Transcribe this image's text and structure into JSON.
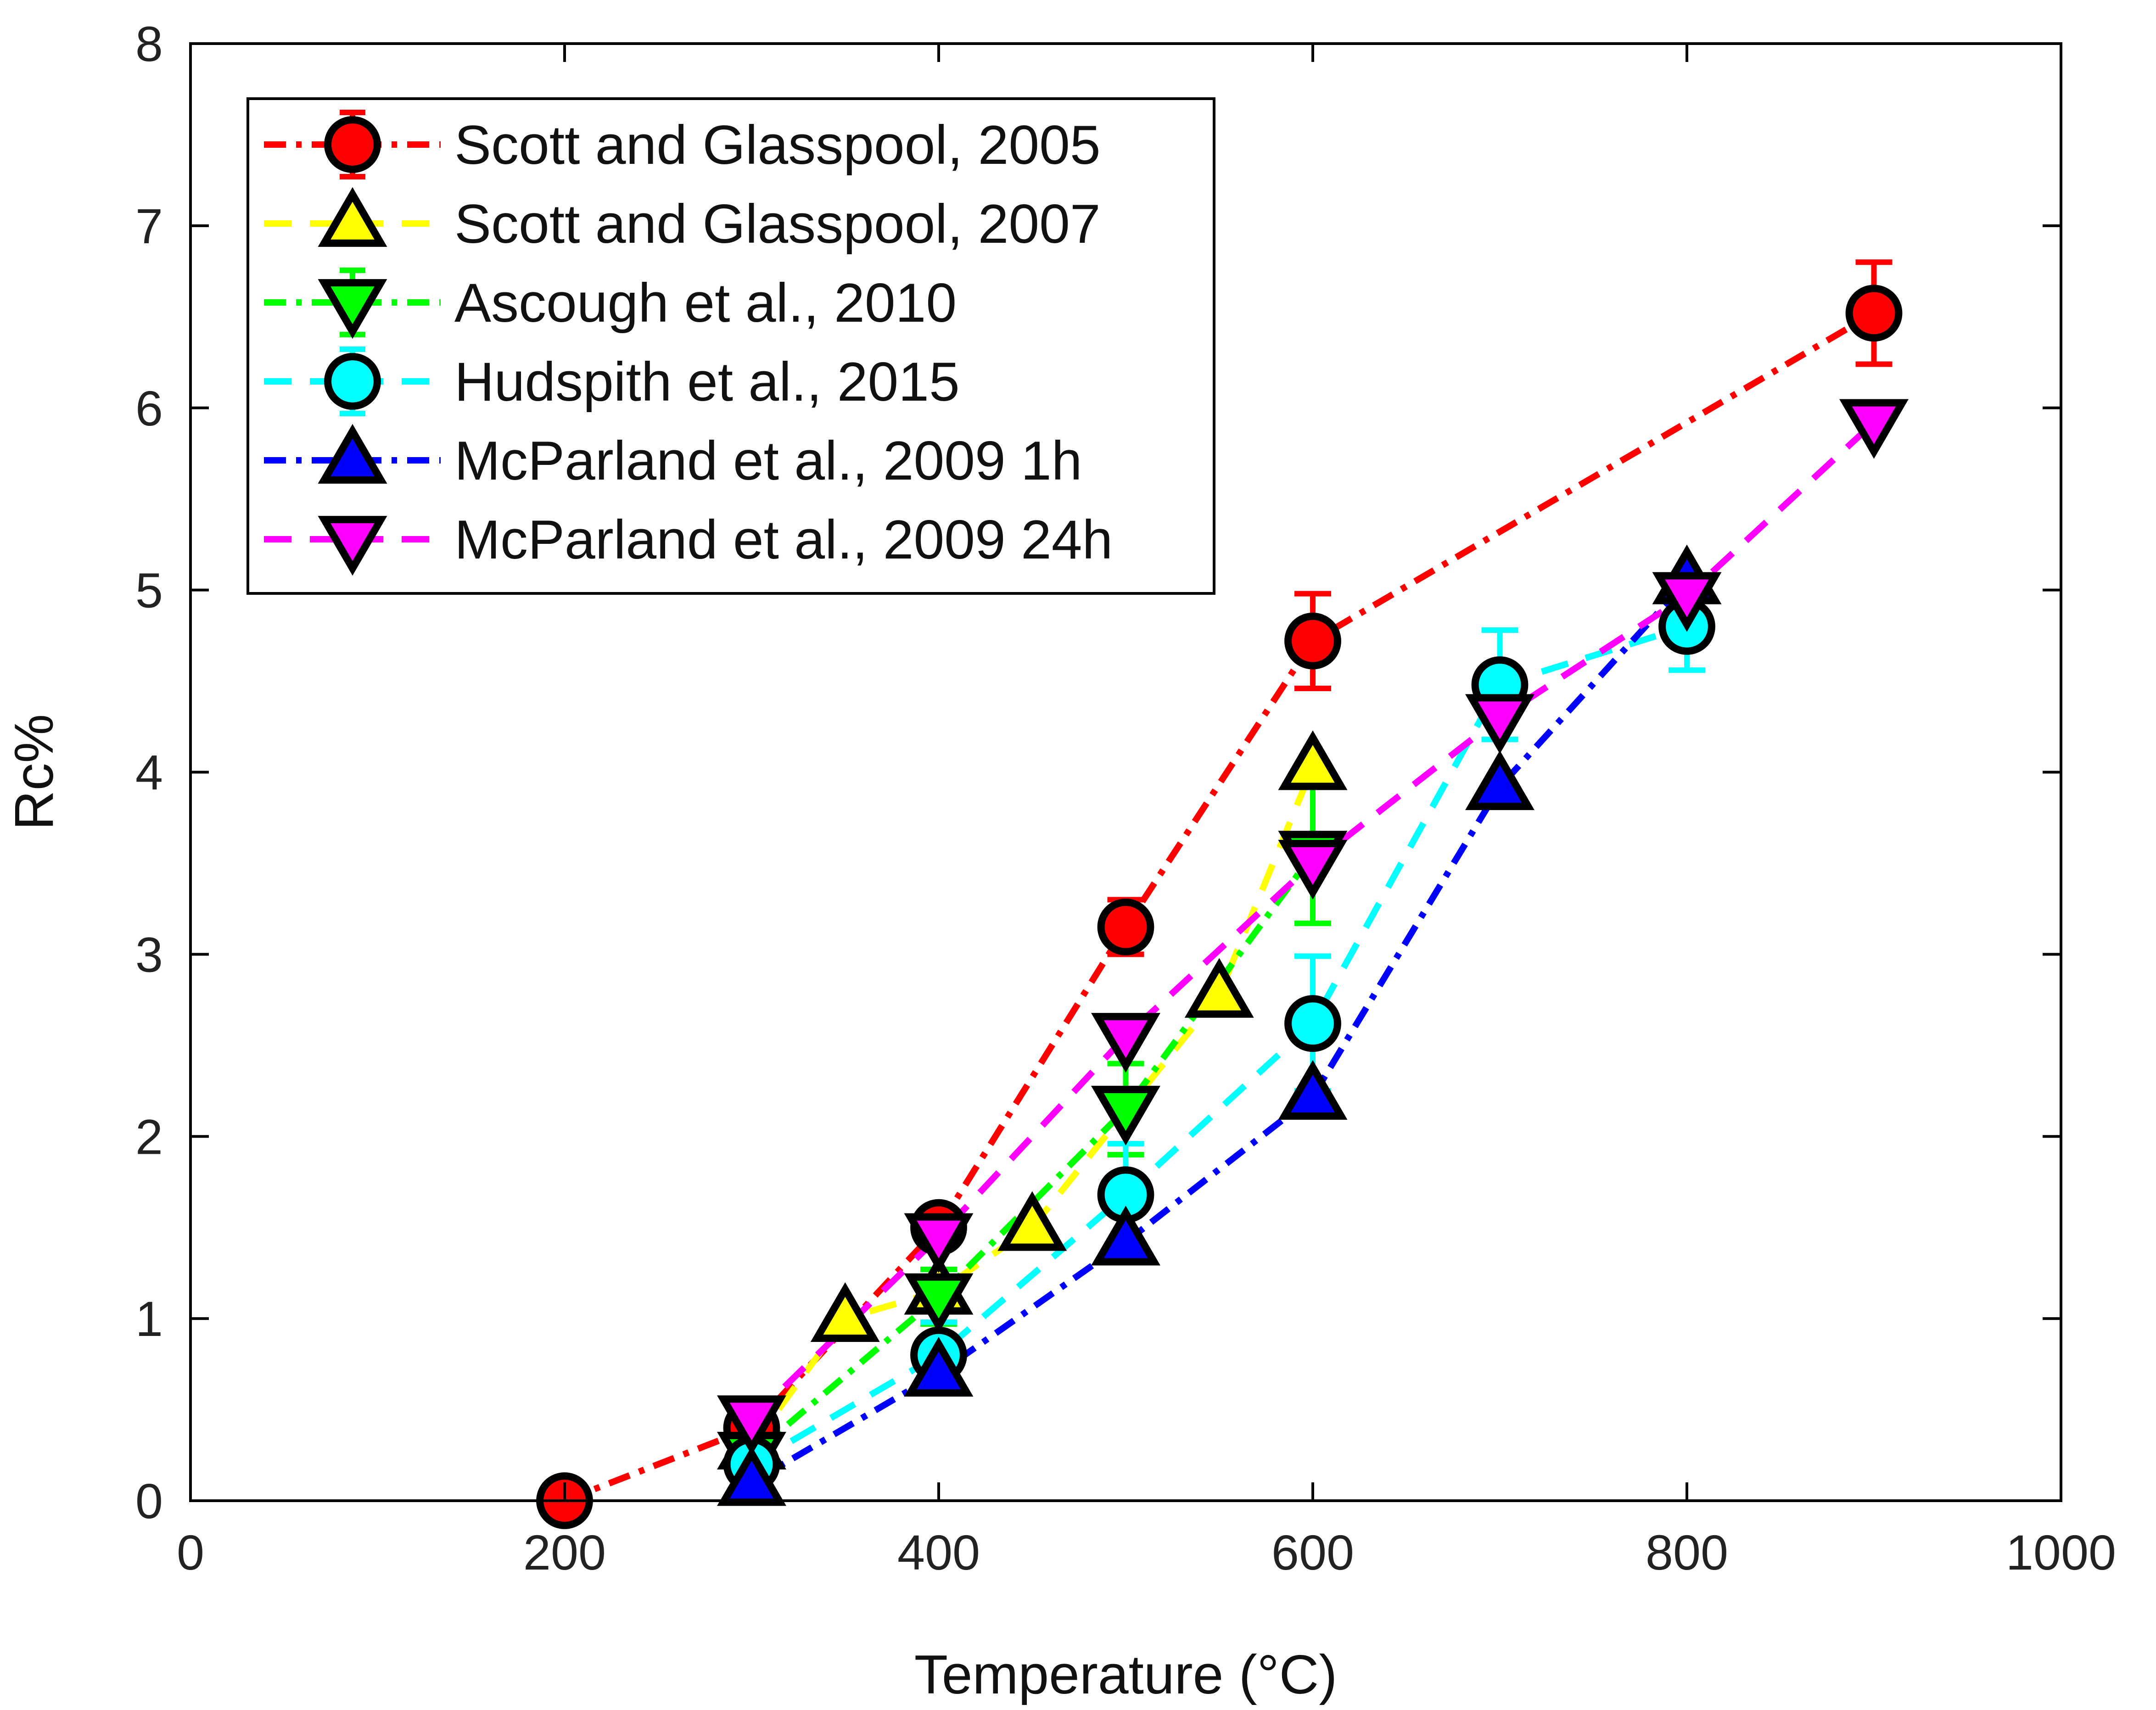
{
  "chart_data": {
    "type": "line",
    "title": "",
    "xlabel": "Temperature (°C)",
    "ylabel": "Rc%",
    "xlim": [
      0,
      1000
    ],
    "ylim": [
      0,
      8
    ],
    "xticks": [
      0,
      200,
      400,
      600,
      800,
      1000
    ],
    "yticks": [
      0,
      1,
      2,
      3,
      4,
      5,
      6,
      7,
      8
    ],
    "grid": false,
    "legend_position": "top-left",
    "series": [
      {
        "name": "Scott and Glasspool, 2005",
        "color": "#ff0000",
        "marker": "circle",
        "line": "dash-dot",
        "x": [
          200,
          300,
          400,
          500,
          600,
          900
        ],
        "y": [
          0.0,
          0.4,
          1.5,
          3.15,
          4.72,
          6.52
        ],
        "err": [
          0,
          0,
          0,
          0.15,
          0.26,
          0.28
        ]
      },
      {
        "name": "Scott and Glasspool, 2007",
        "color": "#ffff00",
        "marker": "triangle-up",
        "line": "dashed",
        "x": [
          300,
          350,
          400,
          450,
          550,
          600
        ],
        "y": [
          0.3,
          1.0,
          1.15,
          1.5,
          2.78,
          4.03
        ],
        "err": [
          0,
          0,
          0,
          0,
          0,
          0
        ]
      },
      {
        "name": "Ascough et al., 2010",
        "color": "#00ff00",
        "marker": "triangle-down",
        "line": "dash-dot",
        "x": [
          300,
          400,
          500,
          600
        ],
        "y": [
          0.25,
          1.12,
          2.15,
          3.55
        ],
        "err": [
          0,
          0.15,
          0.25,
          0.38
        ]
      },
      {
        "name": "Hudspith et al., 2015",
        "color": "#00ffff",
        "marker": "circle",
        "line": "dashed",
        "x": [
          300,
          400,
          500,
          600,
          700,
          800
        ],
        "y": [
          0.2,
          0.8,
          1.68,
          2.62,
          4.48,
          4.8
        ],
        "err": [
          0,
          0.18,
          0.28,
          0.37,
          0.3,
          0.24
        ]
      },
      {
        "name": "McParland et al., 2009 1h",
        "color": "#0000ff",
        "marker": "triangle-up",
        "line": "dash-dot",
        "x": [
          300,
          400,
          500,
          600,
          700,
          800
        ],
        "y": [
          0.1,
          0.7,
          1.42,
          2.22,
          3.92,
          5.05
        ],
        "err": [
          0,
          0,
          0,
          0,
          0,
          0
        ]
      },
      {
        "name": "McParland et al., 2009 24h",
        "color": "#ff00ff",
        "marker": "triangle-down",
        "line": "dashed",
        "x": [
          300,
          400,
          500,
          600,
          700,
          800,
          900
        ],
        "y": [
          0.45,
          1.45,
          2.55,
          3.5,
          4.3,
          4.97,
          5.92
        ],
        "err": [
          0,
          0,
          0,
          0,
          0,
          0,
          0
        ]
      }
    ]
  }
}
